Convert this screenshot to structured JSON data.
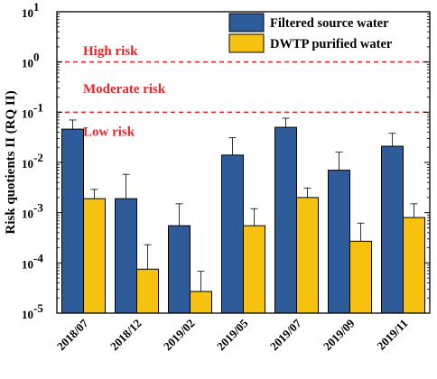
{
  "chart_data": {
    "type": "bar",
    "ylabel": "Risk quotients II (RQ II)",
    "xlabel": "",
    "yscale": "log",
    "ylim": [
      1e-05,
      10
    ],
    "yticks": [
      {
        "value": 10,
        "base": "10",
        "exp": "1"
      },
      {
        "value": 1,
        "base": "10",
        "exp": "0"
      },
      {
        "value": 0.1,
        "base": "10",
        "exp": "-1"
      },
      {
        "value": 0.01,
        "base": "10",
        "exp": "-2"
      },
      {
        "value": 0.001,
        "base": "10",
        "exp": "-3"
      },
      {
        "value": 0.0001,
        "base": "10",
        "exp": "-4"
      },
      {
        "value": 1e-05,
        "base": "10",
        "exp": "-5"
      }
    ],
    "categories": [
      "2018/07",
      "2018/12",
      "2019/02",
      "2019/05",
      "2019/07",
      "2019/09",
      "2019/11"
    ],
    "series": [
      {
        "name": "Filtered source water",
        "color": "#2E5C9A",
        "values": [
          0.046,
          0.0019,
          0.00055,
          0.014,
          0.05,
          0.007,
          0.021
        ],
        "error_upper": [
          0.07,
          0.0058,
          0.0015,
          0.031,
          0.076,
          0.016,
          0.038
        ]
      },
      {
        "name": "DWTP purified water",
        "color": "#F7C20F",
        "values": [
          0.0019,
          7.5e-05,
          2.7e-05,
          0.00055,
          0.002,
          0.00027,
          0.0008
        ],
        "error_upper": [
          0.0029,
          0.00023,
          6.8e-05,
          0.0012,
          0.0031,
          0.00062,
          0.0015
        ]
      }
    ],
    "thresholds": [
      {
        "value": 1,
        "color": "#E8262A"
      },
      {
        "value": 0.1,
        "color": "#E8262A"
      }
    ],
    "annotations": [
      {
        "text": "High risk",
        "y": 1.7
      },
      {
        "text": "Moderate risk",
        "y": 0.3
      },
      {
        "text": "Low risk",
        "y": 0.042
      }
    ],
    "annotation_color": "#E8262A",
    "legend": "top-right",
    "grid": false
  }
}
